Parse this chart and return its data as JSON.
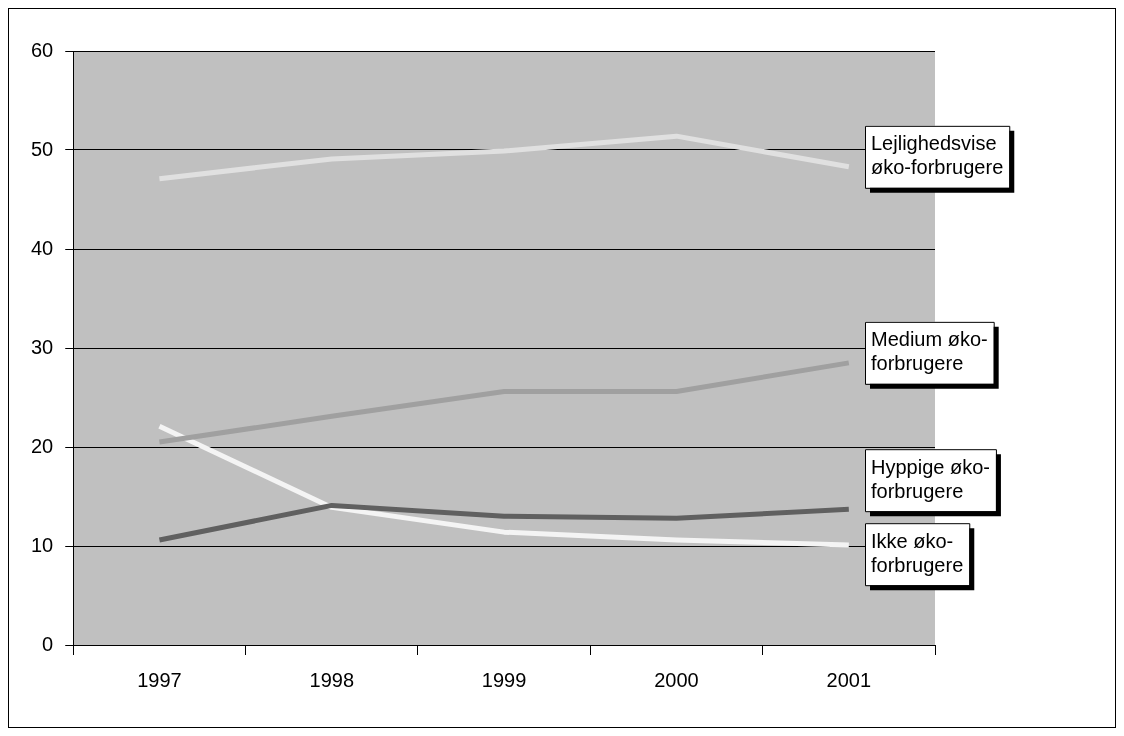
{
  "chart_data": {
    "type": "line",
    "categories": [
      "1997",
      "1998",
      "1999",
      "2000",
      "2001"
    ],
    "series": [
      {
        "name": "Lejlighedsvise øko-forbrugere",
        "color": "#e0e0e0",
        "values": [
          47.1,
          49.1,
          49.9,
          51.4,
          48.3
        ]
      },
      {
        "name": "Medium øko-forbrugere",
        "color": "#a0a0a0",
        "values": [
          20.5,
          23.1,
          25.6,
          25.6,
          28.5
        ]
      },
      {
        "name": "Hyppige øko-forbrugere",
        "color": "#606060",
        "values": [
          10.6,
          14.1,
          13,
          12.8,
          13.7
        ]
      },
      {
        "name": "Ikke øko-forbrugere",
        "color": "#f4f4f4",
        "values": [
          22.1,
          13.9,
          11.4,
          10.6,
          10.1
        ]
      }
    ],
    "ylim": [
      0,
      60
    ],
    "yticks": [
      0,
      10,
      20,
      30,
      40,
      50,
      60
    ],
    "grid": "y",
    "legend": false,
    "marker": "none",
    "line_style": "solid"
  }
}
